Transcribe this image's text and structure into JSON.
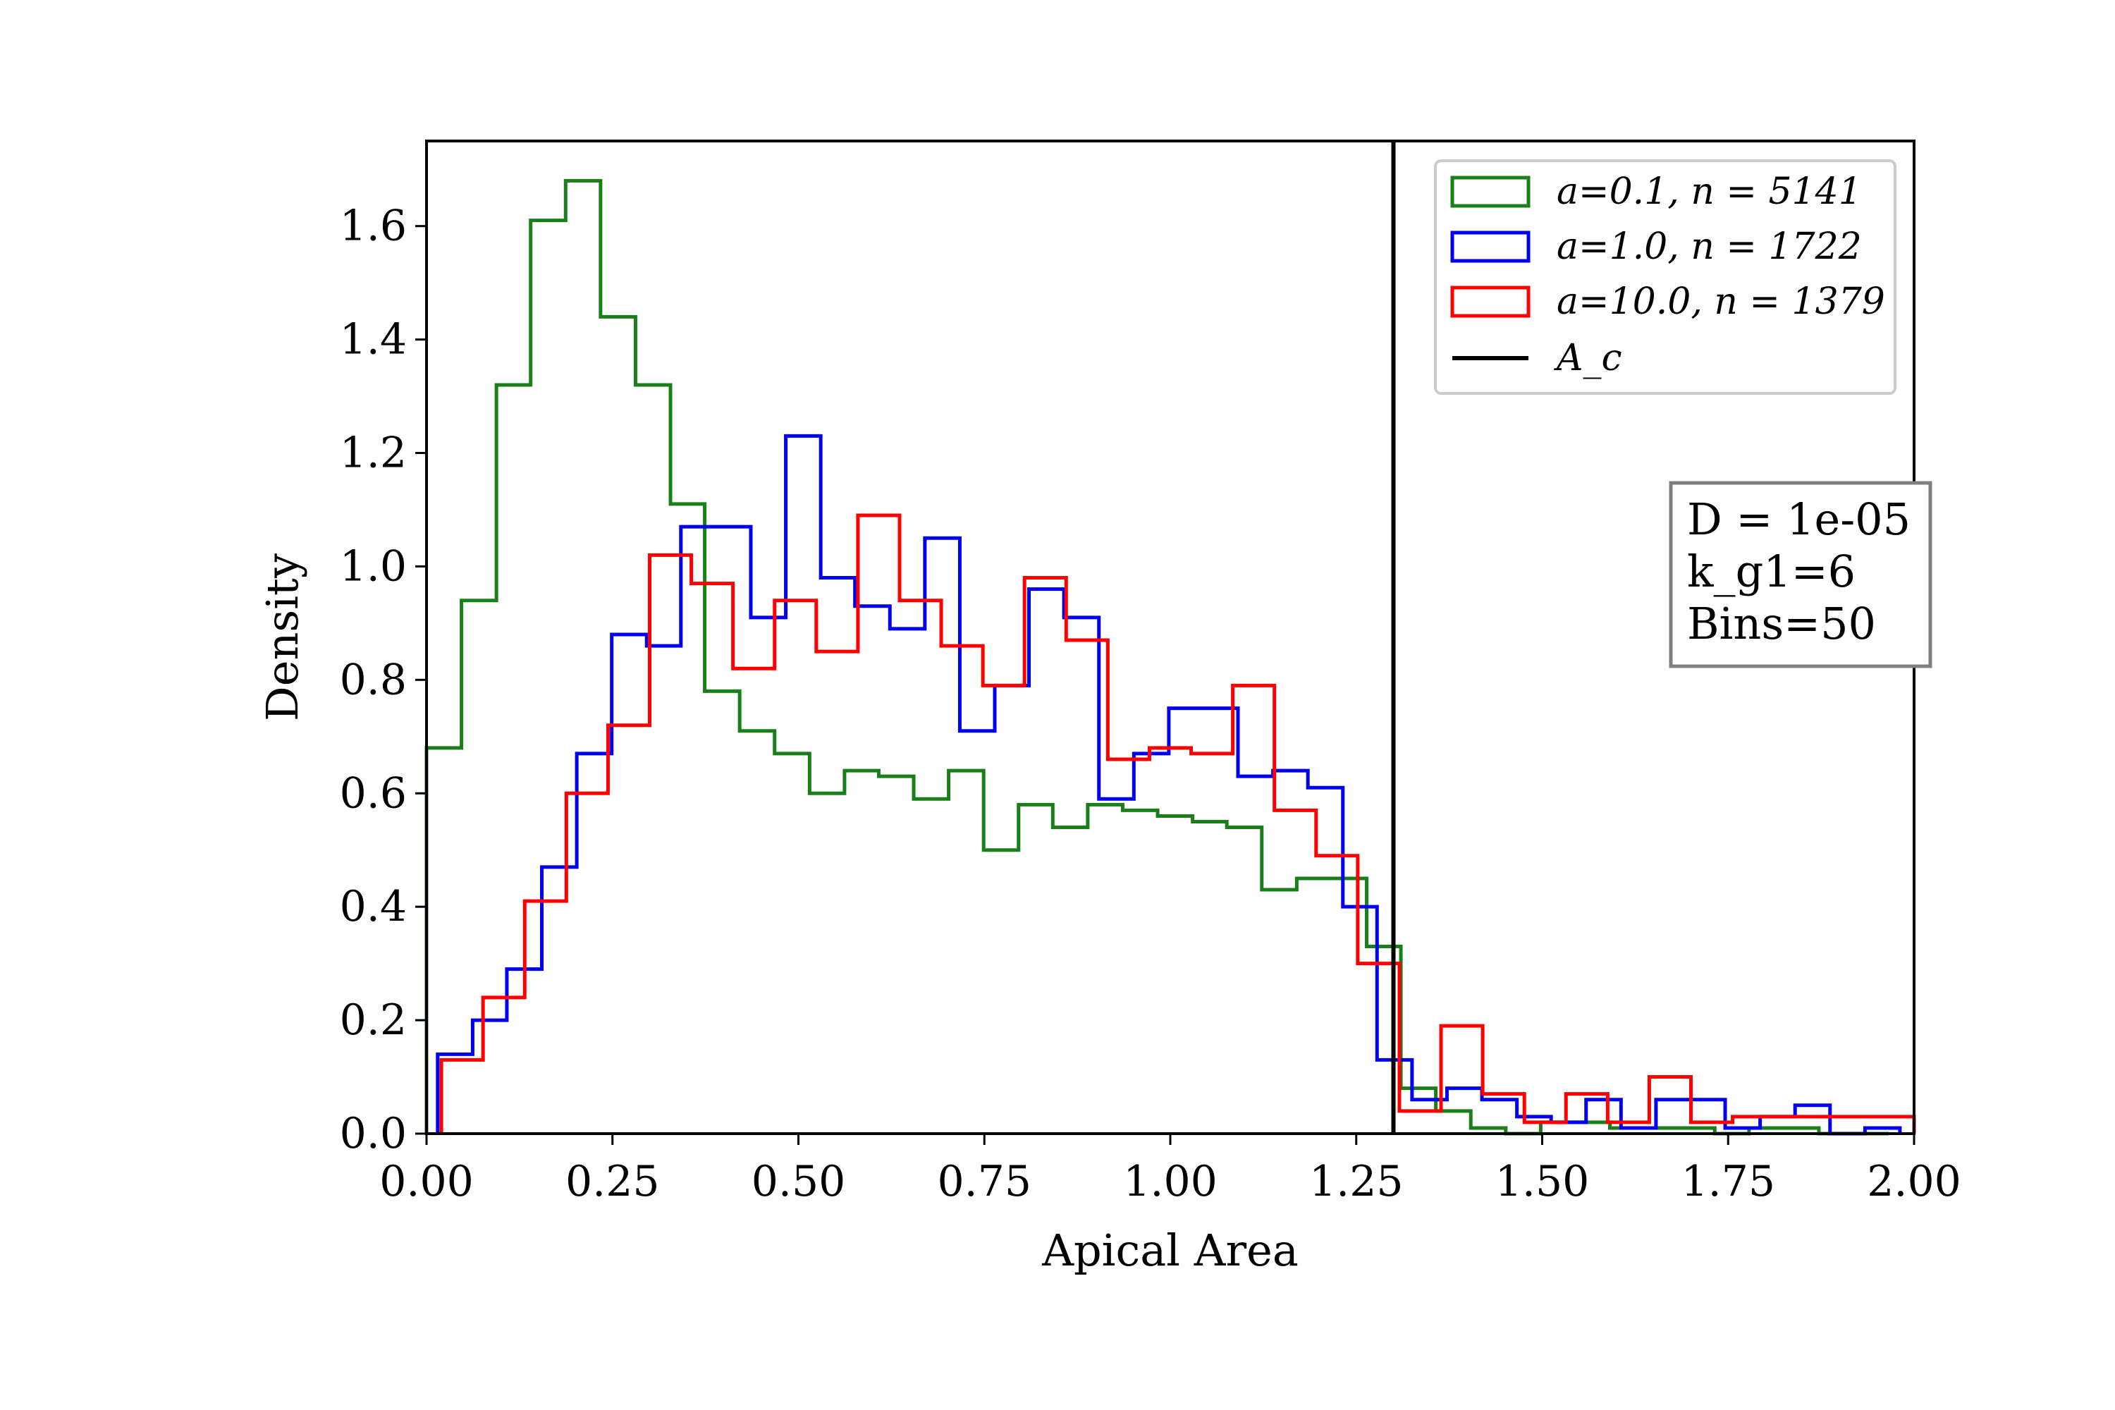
{
  "chart_data": {
    "type": "histogram-step",
    "xlabel": "Apical Area",
    "ylabel": "Density",
    "xlim": [
      0,
      2
    ],
    "ylim": [
      0,
      1.75
    ],
    "xticks": [
      0,
      0.25,
      0.5,
      0.75,
      1.0,
      1.25,
      1.5,
      1.75,
      2.0
    ],
    "xtick_labels": [
      "0.00",
      "0.25",
      "0.50",
      "0.75",
      "1.00",
      "1.25",
      "1.50",
      "1.75",
      "2.00"
    ],
    "yticks": [
      0,
      0.2,
      0.4,
      0.6,
      0.8,
      1.0,
      1.2,
      1.4,
      1.6
    ],
    "ytick_labels": [
      "0.0",
      "0.2",
      "0.4",
      "0.6",
      "0.8",
      "1.0",
      "1.2",
      "1.4",
      "1.6"
    ],
    "grid": false,
    "legend_position": "top-right",
    "vline": {
      "x": 1.3,
      "label": "A_c",
      "color": "#000000"
    },
    "annotation_lines": [
      "D = 1e-05",
      "k_g1=6",
      "Bins=50"
    ],
    "series": [
      {
        "name": "a=0.1, n = 5141",
        "color": "#1a7f1a",
        "edges": [
          0.0,
          0.047,
          0.094,
          0.14,
          0.187,
          0.234,
          0.281,
          0.328,
          0.374,
          0.421,
          0.468,
          0.515,
          0.562,
          0.608,
          0.655,
          0.702,
          0.749,
          0.796,
          0.842,
          0.889,
          0.936,
          0.983,
          1.03,
          1.076,
          1.123,
          1.17,
          1.217,
          1.264,
          1.31,
          1.357,
          1.404,
          1.451,
          1.498,
          1.544,
          1.591,
          1.638,
          1.685,
          1.732,
          1.778,
          1.825,
          1.872,
          1.919,
          1.966
        ],
        "values": [
          0.68,
          0.94,
          1.32,
          1.61,
          1.68,
          1.44,
          1.32,
          1.11,
          0.78,
          0.71,
          0.67,
          0.6,
          0.64,
          0.63,
          0.59,
          0.64,
          0.5,
          0.58,
          0.54,
          0.58,
          0.57,
          0.56,
          0.55,
          0.54,
          0.43,
          0.45,
          0.45,
          0.33,
          0.08,
          0.04,
          0.01,
          0.0,
          0.02,
          0.02,
          0.01,
          0.01,
          0.01,
          0.0,
          0.01,
          0.01,
          0.0,
          0.0
        ]
      },
      {
        "name": "a=1.0, n = 1722",
        "color": "#0000ee",
        "edges": [
          0.015,
          0.062,
          0.108,
          0.155,
          0.202,
          0.249,
          0.296,
          0.342,
          0.389,
          0.436,
          0.483,
          0.53,
          0.576,
          0.623,
          0.67,
          0.717,
          0.764,
          0.81,
          0.857,
          0.904,
          0.951,
          0.998,
          1.044,
          1.091,
          1.138,
          1.185,
          1.232,
          1.278,
          1.325,
          1.372,
          1.419,
          1.466,
          1.512,
          1.559,
          1.606,
          1.653,
          1.7,
          1.746,
          1.793,
          1.84,
          1.887,
          1.934,
          1.981
        ],
        "values": [
          0.14,
          0.2,
          0.29,
          0.47,
          0.67,
          0.88,
          0.86,
          1.07,
          1.07,
          0.91,
          1.23,
          0.98,
          0.93,
          0.89,
          1.05,
          0.71,
          0.79,
          0.96,
          0.91,
          0.59,
          0.67,
          0.75,
          0.75,
          0.63,
          0.64,
          0.61,
          0.4,
          0.13,
          0.06,
          0.08,
          0.06,
          0.03,
          0.02,
          0.06,
          0.01,
          0.06,
          0.06,
          0.01,
          0.03,
          0.05,
          0.0,
          0.01
        ]
      },
      {
        "name": "a=10.0, n = 1379",
        "color": "#ff0000",
        "edges": [
          0.02,
          0.076,
          0.132,
          0.188,
          0.244,
          0.3,
          0.356,
          0.412,
          0.468,
          0.524,
          0.58,
          0.636,
          0.692,
          0.748,
          0.804,
          0.86,
          0.916,
          0.972,
          1.028,
          1.084,
          1.14,
          1.196,
          1.252,
          1.308,
          1.364,
          1.42,
          1.476,
          1.532,
          1.588,
          1.644,
          1.7,
          1.756,
          1.812,
          1.868,
          1.924,
          2.0
        ],
        "values": [
          0.13,
          0.24,
          0.41,
          0.6,
          0.72,
          1.02,
          0.97,
          0.82,
          0.94,
          0.85,
          1.09,
          0.94,
          0.86,
          0.79,
          0.98,
          0.87,
          0.66,
          0.68,
          0.67,
          0.79,
          0.57,
          0.49,
          0.3,
          0.04,
          0.19,
          0.07,
          0.02,
          0.07,
          0.02,
          0.1,
          0.02,
          0.03,
          0.03,
          0.03,
          0.03
        ]
      }
    ]
  }
}
